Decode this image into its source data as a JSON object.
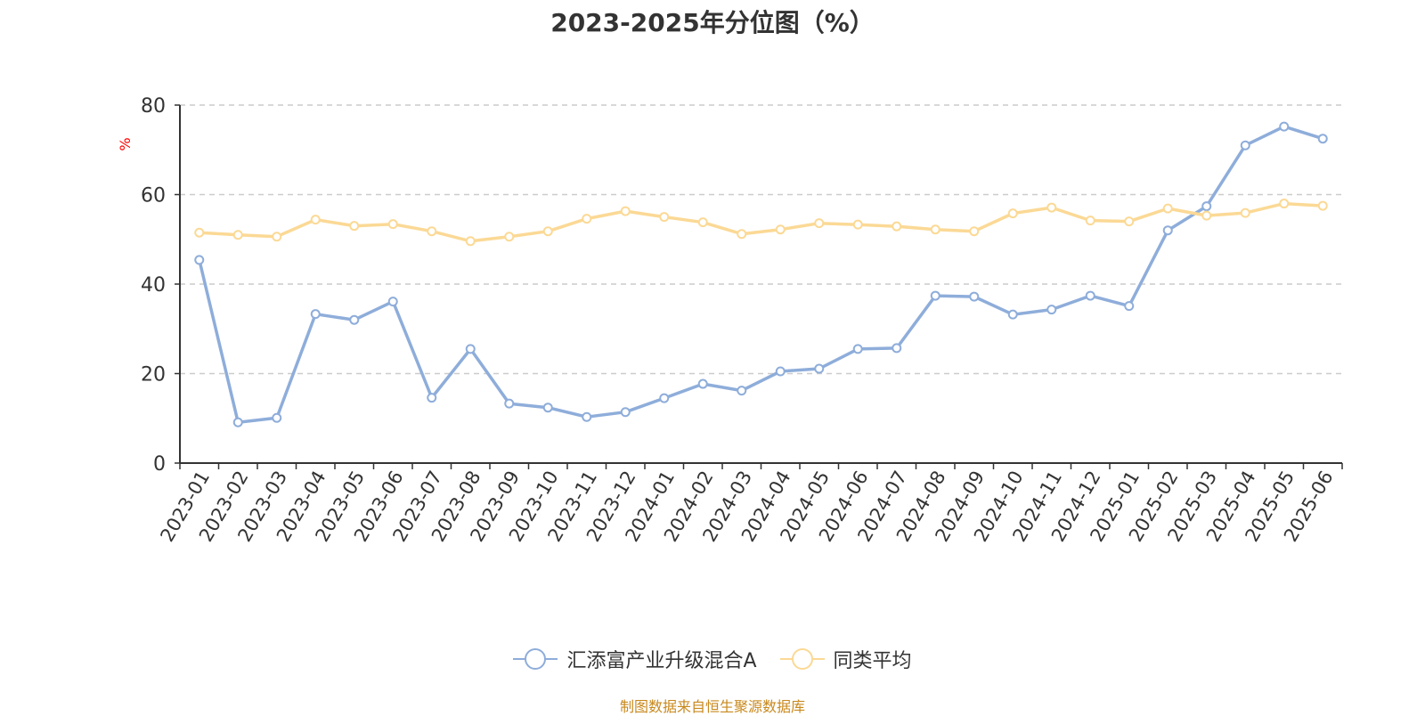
{
  "chart_data": {
    "type": "line",
    "title": "2023-2025年分位图（%）",
    "ylabel": "%",
    "xlabel": "",
    "ylim": [
      0,
      80
    ],
    "yticks": [
      0,
      20,
      40,
      60,
      80
    ],
    "grid": true,
    "legend_position": "bottom",
    "categories": [
      "2023-01",
      "2023-02",
      "2023-03",
      "2023-04",
      "2023-05",
      "2023-06",
      "2023-07",
      "2023-08",
      "2023-09",
      "2023-10",
      "2023-11",
      "2023-12",
      "2024-01",
      "2024-02",
      "2024-03",
      "2024-04",
      "2024-05",
      "2024-06",
      "2024-07",
      "2024-08",
      "2024-09",
      "2024-10",
      "2024-11",
      "2024-12",
      "2025-01",
      "2025-02",
      "2025-03",
      "2025-04",
      "2025-05",
      "2025-06"
    ],
    "series": [
      {
        "name": "汇添富产业升级混合A",
        "color": "#8eadda",
        "values": [
          45.4,
          9.1,
          10.1,
          33.3,
          32.0,
          36.1,
          14.6,
          25.5,
          13.3,
          12.4,
          10.3,
          11.4,
          14.5,
          17.7,
          16.2,
          20.5,
          21.1,
          25.5,
          25.7,
          37.4,
          37.2,
          33.2,
          34.3,
          37.4,
          35.1,
          52.0,
          57.4,
          71.0,
          75.2,
          72.5
        ]
      },
      {
        "name": "同类平均",
        "color": "#fbd995",
        "values": [
          51.5,
          51.0,
          50.6,
          54.4,
          53.0,
          53.4,
          51.8,
          49.6,
          50.6,
          51.8,
          54.6,
          56.3,
          55.0,
          53.8,
          51.2,
          52.2,
          53.6,
          53.3,
          52.9,
          52.2,
          51.8,
          55.8,
          57.1,
          54.2,
          54.0,
          56.9,
          55.3,
          55.9,
          58.0,
          57.5
        ]
      }
    ],
    "source_note": "制图数据来自恒生聚源数据库"
  },
  "colors": {
    "axis": "#333333",
    "grid": "#cccccc",
    "ylabel": "#ff0000",
    "source": "#c8891e"
  }
}
